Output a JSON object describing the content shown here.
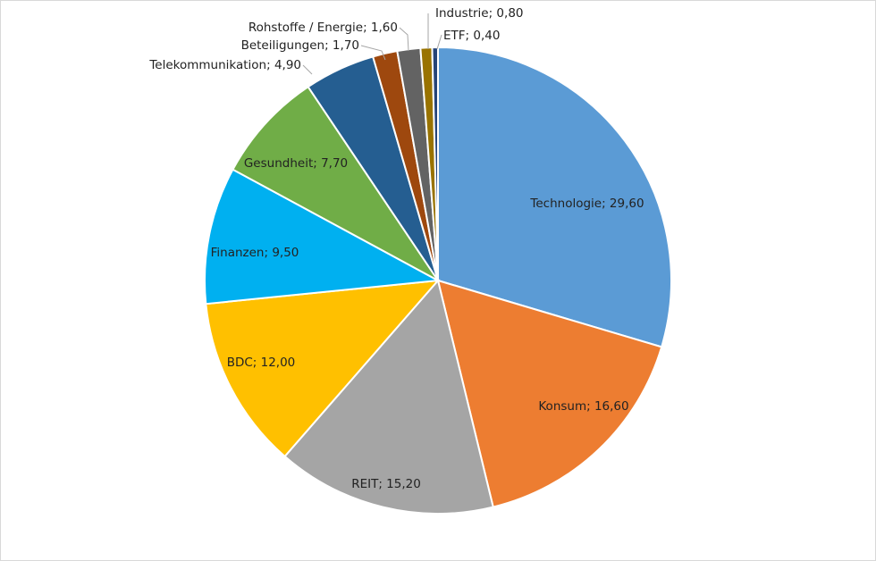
{
  "chart_data": {
    "type": "pie",
    "categories": [
      "Technologie",
      "Konsum",
      "REIT",
      "BDC",
      "Finanzen",
      "Gesundheit",
      "Telekommunikation",
      "Beteiligungen",
      "Rohstoffe / Energie",
      "Industrie",
      "ETF"
    ],
    "values": [
      29.6,
      16.6,
      15.2,
      12.0,
      9.5,
      7.7,
      4.9,
      1.7,
      1.6,
      0.8,
      0.4
    ],
    "labels": [
      "Technologie; 29,60",
      "Konsum; 16,60",
      "REIT; 15,20",
      "BDC; 12,00",
      "Finanzen; 9,50",
      "Gesundheit; 7,70",
      "Telekommunikation; 4,90",
      "Beteiligungen; 1,70",
      "Rohstoffe / Energie; 1,60",
      "Industrie; 0,80",
      "ETF; 0,40"
    ],
    "colors": [
      "#5B9BD5",
      "#ED7D31",
      "#A5A5A5",
      "#FFC000",
      "#00B0F0",
      "#70AD47",
      "#255E91",
      "#9E480E",
      "#636363",
      "#997300",
      "#264478"
    ],
    "legend": "none",
    "start_angle": "12 o'clock, clockwise"
  }
}
